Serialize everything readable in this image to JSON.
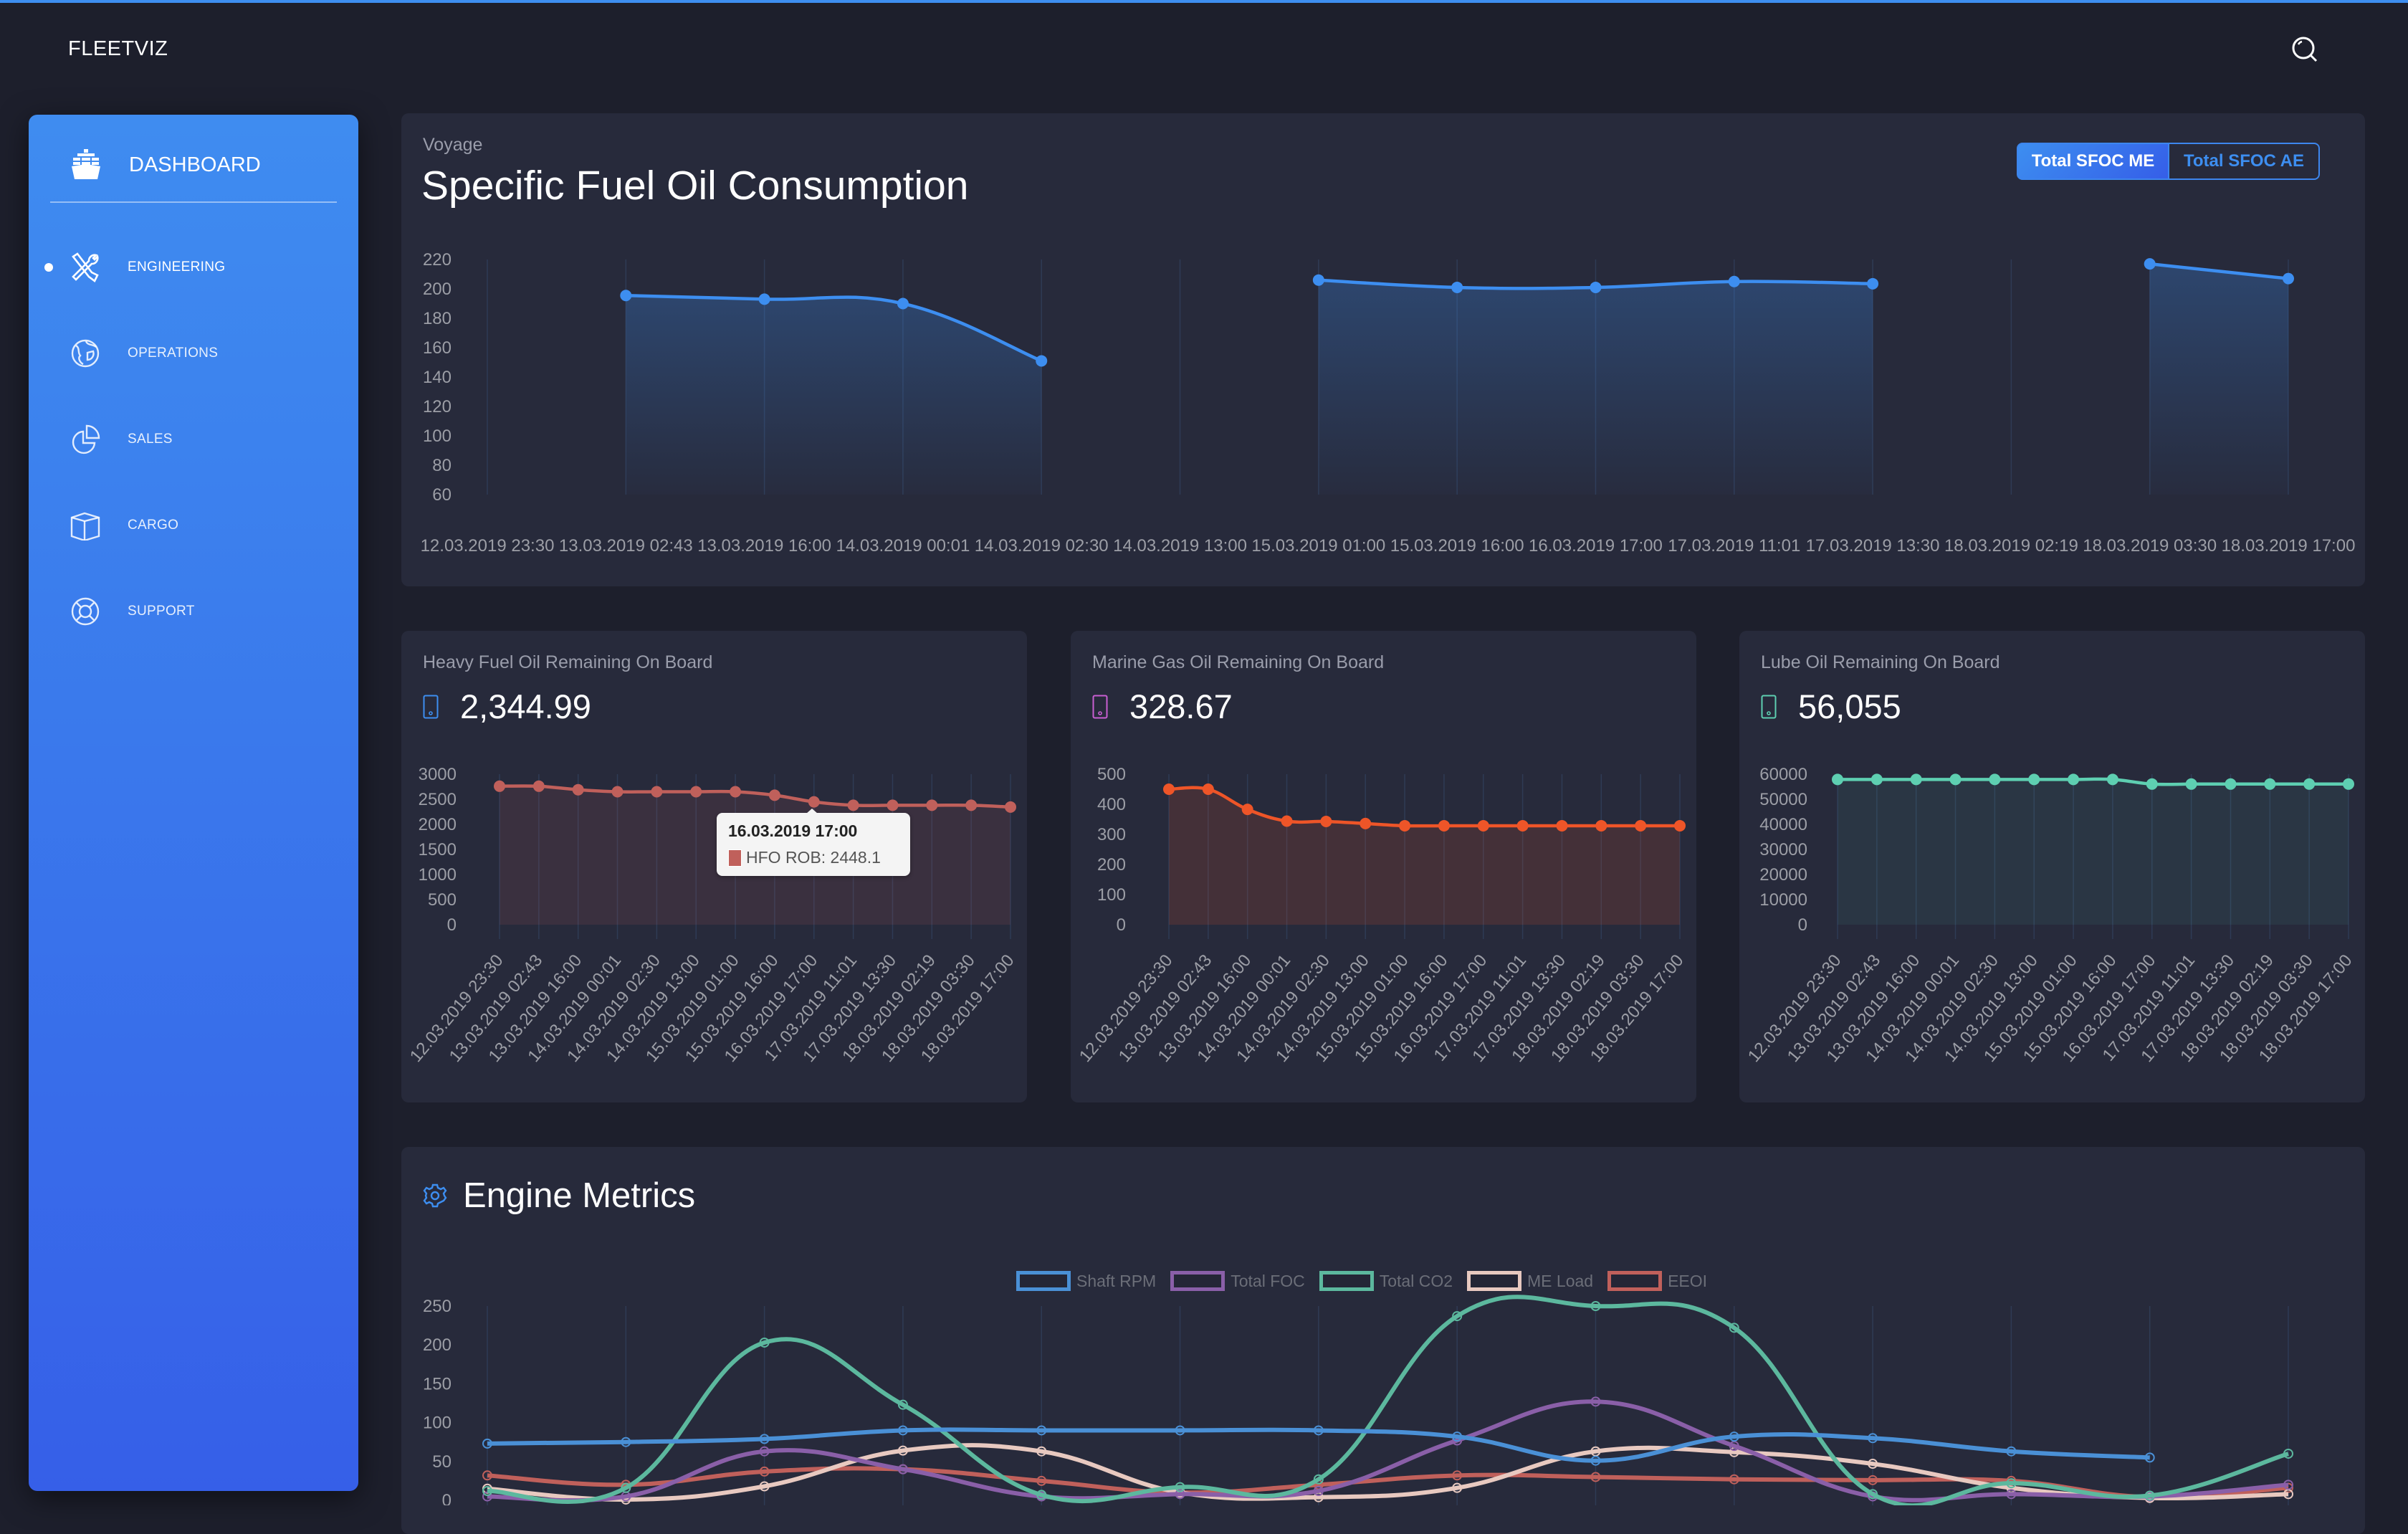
{
  "app": {
    "brand": "FLEETVIZ",
    "accent": "#3d8ef0"
  },
  "header": {
    "search_icon": "search-icon"
  },
  "sidebar": {
    "dashboard": {
      "label": "DASHBOARD",
      "icon": "ship-icon"
    },
    "items": [
      {
        "label": "ENGINEERING",
        "icon": "tools-icon",
        "active": true
      },
      {
        "label": "OPERATIONS",
        "icon": "globe-icon",
        "active": false
      },
      {
        "label": "SALES",
        "icon": "pie-chart-icon",
        "active": false
      },
      {
        "label": "CARGO",
        "icon": "box-icon",
        "active": false
      },
      {
        "label": "SUPPORT",
        "icon": "lifebuoy-icon",
        "active": false
      }
    ]
  },
  "sfoc": {
    "subtitle": "Voyage",
    "title": "Specific Fuel Oil Consumption",
    "toggle": [
      {
        "label": "Total SFOC ME",
        "active": true
      },
      {
        "label": "Total SFOC AE",
        "active": false
      }
    ]
  },
  "kpis": [
    {
      "title": "Heavy Fuel Oil Remaining On Board",
      "value": "2,344.99",
      "icon": "phone-icon",
      "icon_color": "#3d8ef0"
    },
    {
      "title": "Marine Gas Oil Remaining On Board",
      "value": "328.67",
      "icon": "phone-icon",
      "icon_color": "#c85fd2"
    },
    {
      "title": "Lube Oil Remaining On Board",
      "value": "56,055",
      "icon": "phone-icon",
      "icon_color": "#5ecfb1"
    }
  ],
  "tooltip": {
    "title": "16.03.2019 17:00",
    "label": "HFO ROB: 2448.1"
  },
  "engine": {
    "title": "Engine Metrics"
  },
  "chart_data": [
    {
      "id": "sfoc",
      "type": "area",
      "title": "Specific Fuel Oil Consumption",
      "categories": [
        "12.03.2019 23:30",
        "13.03.2019 02:43",
        "13.03.2019 16:00",
        "14.03.2019 00:01",
        "14.03.2019 02:30",
        "14.03.2019 13:00",
        "15.03.2019 01:00",
        "15.03.2019 16:00",
        "16.03.2019 17:00",
        "17.03.2019 11:01",
        "17.03.2019 13:30",
        "18.03.2019 02:19",
        "18.03.2019 03:30",
        "18.03.2019 17:00"
      ],
      "values": [
        null,
        195.5,
        193,
        190,
        151,
        null,
        206,
        201,
        201,
        205,
        203.5,
        null,
        217,
        207
      ],
      "ylim": [
        60,
        220
      ],
      "yticks": [
        60,
        80,
        100,
        120,
        140,
        160,
        180,
        200,
        220
      ],
      "color": "#3d8ef0",
      "grid": "vertical"
    },
    {
      "id": "hfo",
      "type": "area",
      "title": "Heavy Fuel Oil Remaining On Board",
      "series_name": "HFO ROB",
      "categories": [
        "12.03.2019 23:30",
        "13.03.2019 02:43",
        "13.03.2019 16:00",
        "14.03.2019 00:01",
        "14.03.2019 02:30",
        "14.03.2019 13:00",
        "15.03.2019 01:00",
        "15.03.2019 16:00",
        "16.03.2019 17:00",
        "17.03.2019 11:01",
        "17.03.2019 13:30",
        "18.03.2019 02:19",
        "18.03.2019 03:30",
        "18.03.2019 17:00"
      ],
      "values": [
        2760,
        2760,
        2690,
        2650,
        2650,
        2650,
        2650,
        2580,
        2448.1,
        2380,
        2380,
        2380,
        2380,
        2344.99
      ],
      "ylim": [
        0,
        3000
      ],
      "yticks": [
        0,
        500,
        1000,
        1500,
        2000,
        2500,
        3000
      ],
      "color": "#c0605b"
    },
    {
      "id": "mgo",
      "type": "area",
      "title": "Marine Gas Oil Remaining On Board",
      "categories": [
        "12.03.2019 23:30",
        "13.03.2019 02:43",
        "13.03.2019 16:00",
        "14.03.2019 00:01",
        "14.03.2019 02:30",
        "14.03.2019 13:00",
        "15.03.2019 01:00",
        "15.03.2019 16:00",
        "16.03.2019 17:00",
        "17.03.2019 11:01",
        "17.03.2019 13:30",
        "18.03.2019 02:19",
        "18.03.2019 03:30",
        "18.03.2019 17:00"
      ],
      "values": [
        450,
        450,
        383,
        344,
        343,
        336,
        328.67,
        328.67,
        328.67,
        328.67,
        328.67,
        328.67,
        328.67,
        328.67
      ],
      "ylim": [
        0,
        500
      ],
      "yticks": [
        0,
        100,
        200,
        300,
        400,
        500
      ],
      "color": "#ee5528"
    },
    {
      "id": "lube",
      "type": "area",
      "title": "Lube Oil Remaining On Board",
      "categories": [
        "12.03.2019 23:30",
        "13.03.2019 02:43",
        "13.03.2019 16:00",
        "14.03.2019 00:01",
        "14.03.2019 02:30",
        "14.03.2019 13:00",
        "15.03.2019 01:00",
        "15.03.2019 16:00",
        "16.03.2019 17:00",
        "17.03.2019 11:01",
        "17.03.2019 13:30",
        "18.03.2019 02:19",
        "18.03.2019 03:30",
        "18.03.2019 17:00"
      ],
      "values": [
        57900,
        57900,
        57900,
        57900,
        57900,
        57900,
        57900,
        57900,
        56055,
        56055,
        56055,
        56055,
        56055,
        56055
      ],
      "ylim": [
        0,
        60000
      ],
      "yticks": [
        0,
        10000,
        20000,
        30000,
        40000,
        50000,
        60000
      ],
      "color": "#5ecfb1"
    },
    {
      "id": "engine",
      "type": "line",
      "title": "Engine Metrics",
      "ylim": [
        0,
        250
      ],
      "yticks": [
        0,
        50,
        100,
        150,
        200,
        250
      ],
      "legend": "top",
      "categories": [
        "12.03.2019 23:30",
        "13.03.2019 02:43",
        "13.03.2019 16:00",
        "14.03.2019 00:01",
        "14.03.2019 02:30",
        "14.03.2019 13:00",
        "15.03.2019 01:00",
        "15.03.2019 16:00",
        "16.03.2019 17:00",
        "17.03.2019 11:01",
        "17.03.2019 13:30",
        "18.03.2019 02:19",
        "18.03.2019 03:30",
        "18.03.2019 17:00"
      ],
      "series": [
        {
          "name": "Shaft RPM",
          "color": "#4a90d6",
          "values": [
            73,
            75,
            79,
            90,
            90,
            90,
            90,
            82,
            51,
            82,
            80,
            63,
            55,
            null
          ]
        },
        {
          "name": "Total FOC",
          "color": "#8a5fa8",
          "values": [
            5,
            5,
            63,
            40,
            5,
            8,
            12,
            77,
            127,
            70,
            5,
            8,
            5,
            20
          ]
        },
        {
          "name": "Total CO2",
          "color": "#5cb89e",
          "values": [
            12,
            16,
            203,
            123,
            7,
            17,
            27,
            237,
            250,
            222,
            8,
            22,
            6,
            60
          ]
        },
        {
          "name": "ME Load",
          "color": "#e8c9c0",
          "values": [
            15,
            1,
            18,
            64,
            63,
            10,
            4,
            16,
            63,
            62,
            47,
            16,
            3,
            8
          ]
        },
        {
          "name": "EEOI",
          "color": "#c0605b",
          "values": [
            32,
            20,
            37,
            40,
            25,
            10,
            20,
            32,
            30,
            27,
            26,
            25,
            4,
            16
          ]
        }
      ]
    }
  ]
}
